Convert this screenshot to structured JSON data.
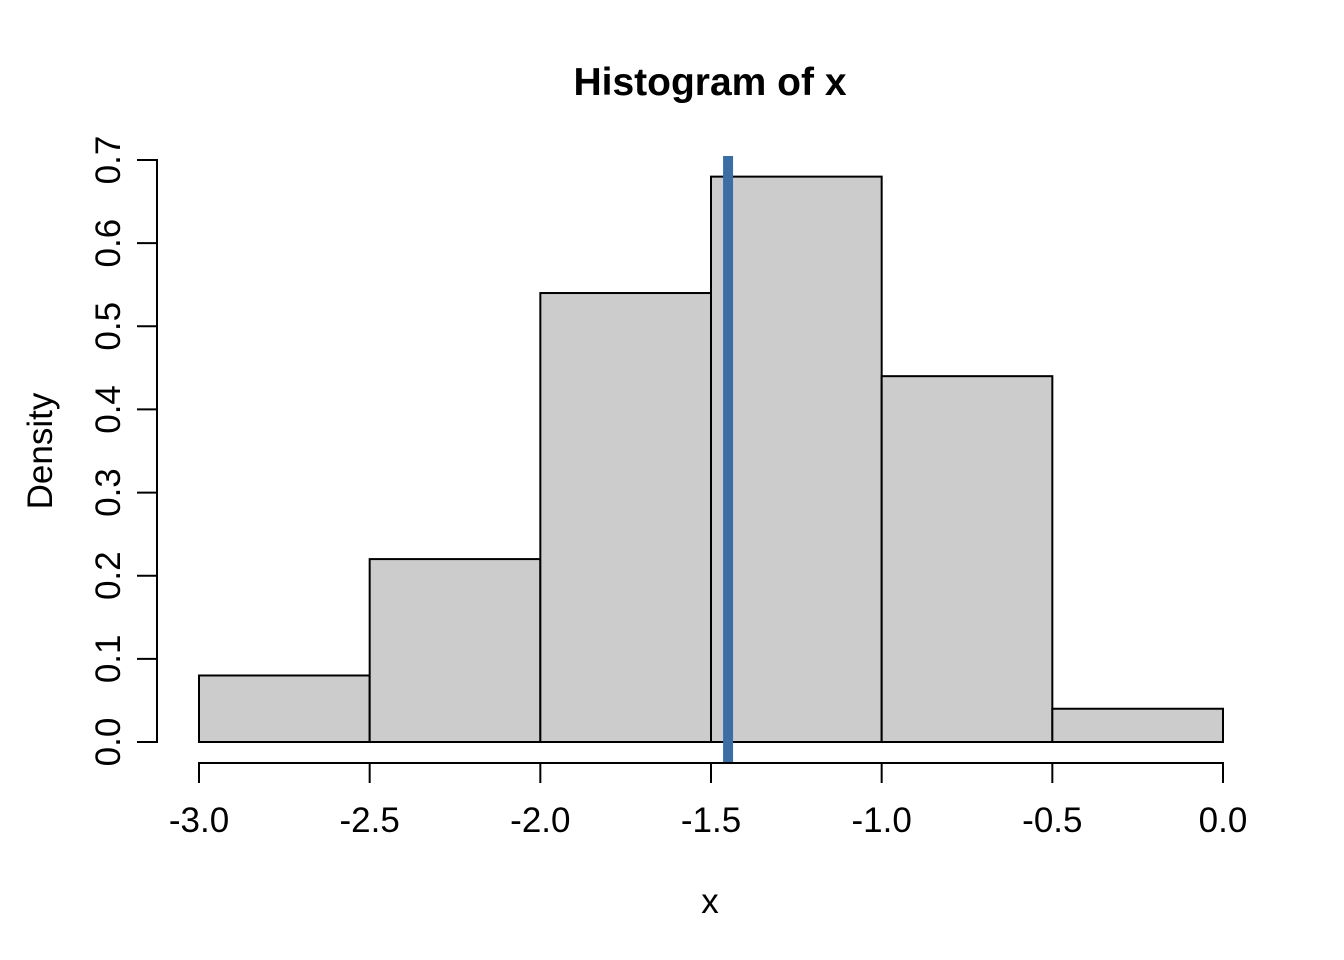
{
  "figure": {
    "background": "#FFFFFF"
  },
  "chart_data": {
    "type": "histogram",
    "title": "Histogram of x",
    "xlabel": "x",
    "ylabel": "Density",
    "xlim": [
      -3.0,
      0.0
    ],
    "ylim": [
      0.0,
      0.7
    ],
    "grid": false,
    "bin_edges": [
      -3.0,
      -2.5,
      -2.0,
      -1.5,
      -1.0,
      -0.5,
      0.0
    ],
    "densities": [
      0.08,
      0.22,
      0.54,
      0.68,
      0.44,
      0.04
    ],
    "x_tick_values": [
      -3.0,
      -2.5,
      -2.0,
      -1.5,
      -1.0,
      -0.5,
      0.0
    ],
    "x_tick_labels": [
      "-3.0",
      "-2.5",
      "-2.0",
      "-1.5",
      "-1.0",
      "-0.5",
      "0.0"
    ],
    "y_tick_values": [
      0.0,
      0.1,
      0.2,
      0.3,
      0.4,
      0.5,
      0.6,
      0.7
    ],
    "y_tick_labels": [
      "0.0",
      "0.1",
      "0.2",
      "0.3",
      "0.4",
      "0.5",
      "0.6",
      "0.7"
    ],
    "vline": {
      "x": -1.45,
      "color": "#3A6EA5"
    },
    "colors": {
      "bar_fill": "#CCCCCC",
      "bar_stroke": "#000000",
      "axis": "#000000",
      "text": "#000000",
      "background": "#FFFFFF"
    }
  }
}
